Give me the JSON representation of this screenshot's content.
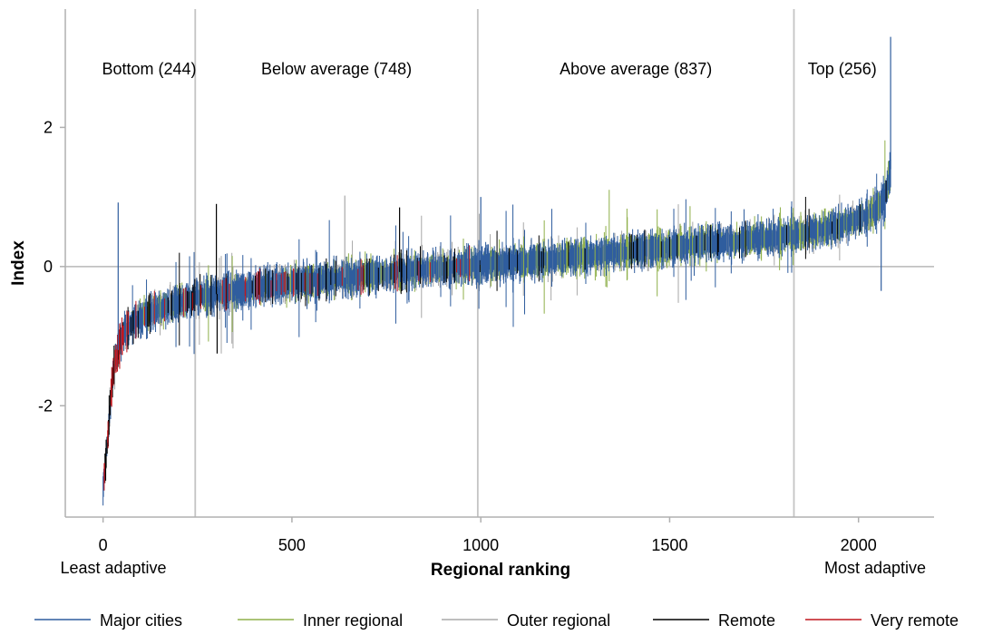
{
  "chart_data": {
    "type": "line",
    "xlabel": "Regional ranking",
    "ylabel": "Index",
    "xlim": [
      -100,
      2200
    ],
    "ylim": [
      -3.6,
      3.7
    ],
    "x_ticks": [
      0,
      500,
      1000,
      1500,
      2000
    ],
    "y_ticks": [
      -2,
      0,
      2
    ],
    "y_tick_labels": [
      "-2",
      "0",
      "2"
    ],
    "end_labels": {
      "left": "Least adaptive",
      "right": "Most adaptive"
    },
    "zero_line": true,
    "group_boundaries": [
      0,
      244,
      992,
      1829,
      2085
    ],
    "groups": [
      {
        "label": "Bottom (244)",
        "from": 0,
        "to": 244
      },
      {
        "label": "Below average (748)",
        "from": 244,
        "to": 992
      },
      {
        "label": "Above average (837)",
        "from": 992,
        "to": 1829
      },
      {
        "label": "Top (256)",
        "from": 1829,
        "to": 2085
      }
    ],
    "legend_position": "bottom",
    "series": [
      {
        "name": "Major cities",
        "color": "#2f5d9e"
      },
      {
        "name": "Inner regional",
        "color": "#8fb04a"
      },
      {
        "name": "Outer regional",
        "color": "#a8a8a8"
      },
      {
        "name": "Remote",
        "color": "#000000"
      },
      {
        "name": "Very remote",
        "color": "#c0171e"
      }
    ],
    "trend_points": [
      [
        0,
        -3.2
      ],
      [
        10,
        -2.6
      ],
      [
        20,
        -1.9
      ],
      [
        30,
        -1.4
      ],
      [
        50,
        -1.0
      ],
      [
        80,
        -0.8
      ],
      [
        150,
        -0.6
      ],
      [
        244,
        -0.45
      ],
      [
        400,
        -0.3
      ],
      [
        600,
        -0.18
      ],
      [
        800,
        -0.07
      ],
      [
        992,
        0.02
      ],
      [
        1200,
        0.12
      ],
      [
        1400,
        0.22
      ],
      [
        1600,
        0.33
      ],
      [
        1829,
        0.45
      ],
      [
        1950,
        0.58
      ],
      [
        2030,
        0.75
      ],
      [
        2070,
        0.95
      ],
      [
        2085,
        1.4
      ]
    ],
    "highlight_spikes": [
      {
        "x": 40,
        "y": 0.92,
        "series": "Major cities"
      },
      {
        "x": 300,
        "y": 0.9,
        "series": "Remote"
      },
      {
        "x": 302,
        "y": -1.25,
        "series": "Remote"
      },
      {
        "x": 640,
        "y": 1.02,
        "series": "Outer regional"
      },
      {
        "x": 785,
        "y": 0.85,
        "series": "Remote"
      },
      {
        "x": 2085,
        "y": 3.3,
        "series": "Major cities"
      },
      {
        "x": 2060,
        "y": -0.35,
        "series": "Major cities"
      },
      {
        "x": 1000,
        "y": 1.0,
        "series": "Major cities"
      }
    ]
  }
}
